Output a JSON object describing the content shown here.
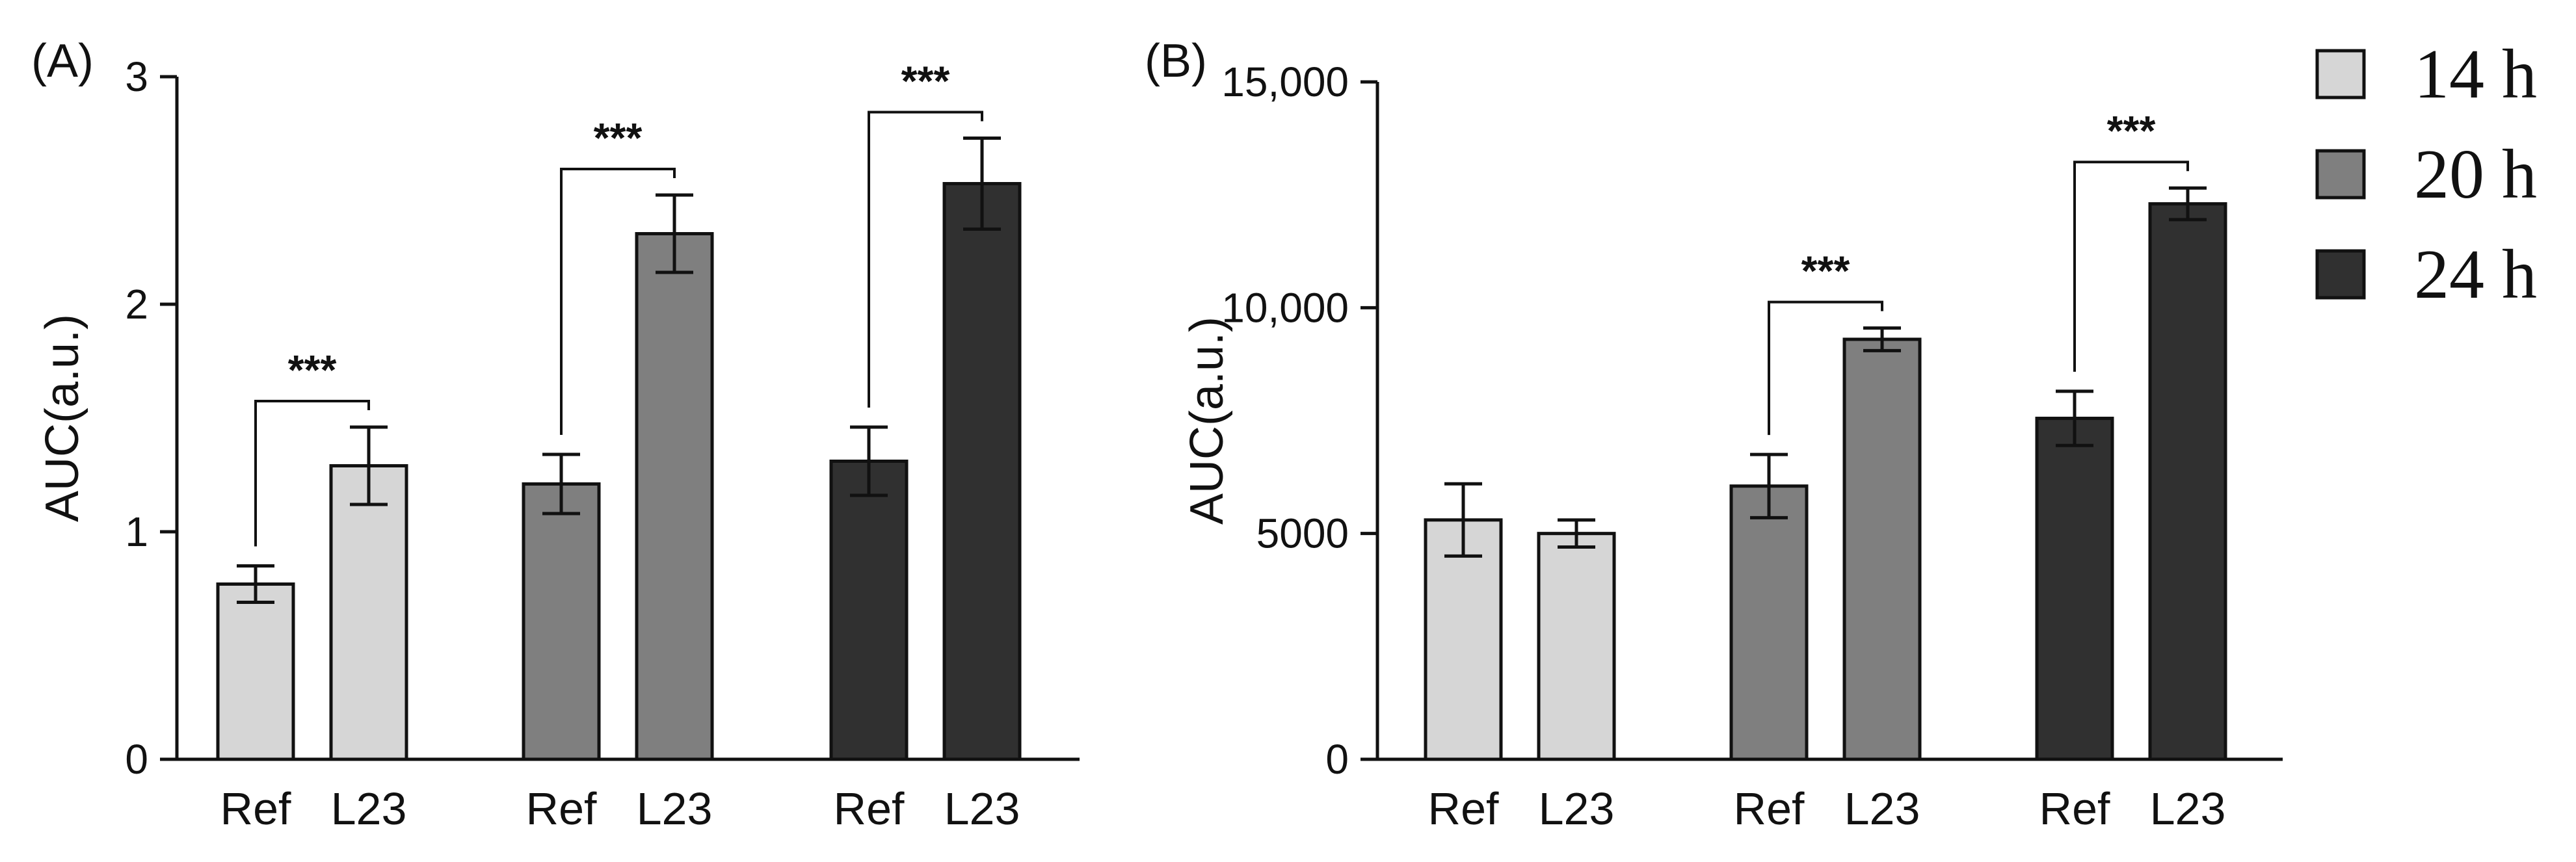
{
  "legend": [
    {
      "label": "14 h",
      "color": "#d6d6d6"
    },
    {
      "label": "20 h",
      "color": "#7f7f7f"
    },
    {
      "label": "24 h",
      "color": "#303030"
    }
  ],
  "chart_data": [
    {
      "type": "bar",
      "panel_label": "(A)",
      "ylabel": "AUC(a.u.)",
      "ylim": [
        0,
        3
      ],
      "yticks": [
        0,
        1,
        2,
        3
      ],
      "ytick_labels": [
        "0",
        "1",
        "2",
        "3"
      ],
      "groups": [
        {
          "series": "14 h",
          "bars": [
            {
              "category": "Ref",
              "value": 0.77,
              "error": 0.08
            },
            {
              "category": "L23",
              "value": 1.29,
              "error": 0.17
            }
          ],
          "significance": "***"
        },
        {
          "series": "20 h",
          "bars": [
            {
              "category": "Ref",
              "value": 1.21,
              "error": 0.13
            },
            {
              "category": "L23",
              "value": 2.31,
              "error": 0.17
            }
          ],
          "significance": "***"
        },
        {
          "series": "24 h",
          "bars": [
            {
              "category": "Ref",
              "value": 1.31,
              "error": 0.15
            },
            {
              "category": "L23",
              "value": 2.53,
              "error": 0.2
            }
          ],
          "significance": "***"
        }
      ]
    },
    {
      "type": "bar",
      "panel_label": "(B)",
      "ylabel": "AUC(a.u.)",
      "ylim": [
        0,
        15000
      ],
      "yticks": [
        0,
        5000,
        10000,
        15000
      ],
      "ytick_labels": [
        "0",
        "5000",
        "10,000",
        "15,000"
      ],
      "groups": [
        {
          "series": "14 h",
          "bars": [
            {
              "category": "Ref",
              "value": 5300,
              "error": 800
            },
            {
              "category": "L23",
              "value": 5000,
              "error": 300
            }
          ],
          "significance": ""
        },
        {
          "series": "20 h",
          "bars": [
            {
              "category": "Ref",
              "value": 6050,
              "error": 700
            },
            {
              "category": "L23",
              "value": 9300,
              "error": 250
            }
          ],
          "significance": "***"
        },
        {
          "series": "24 h",
          "bars": [
            {
              "category": "Ref",
              "value": 7550,
              "error": 600
            },
            {
              "category": "L23",
              "value": 12300,
              "error": 350
            }
          ],
          "significance": "***"
        }
      ]
    }
  ]
}
